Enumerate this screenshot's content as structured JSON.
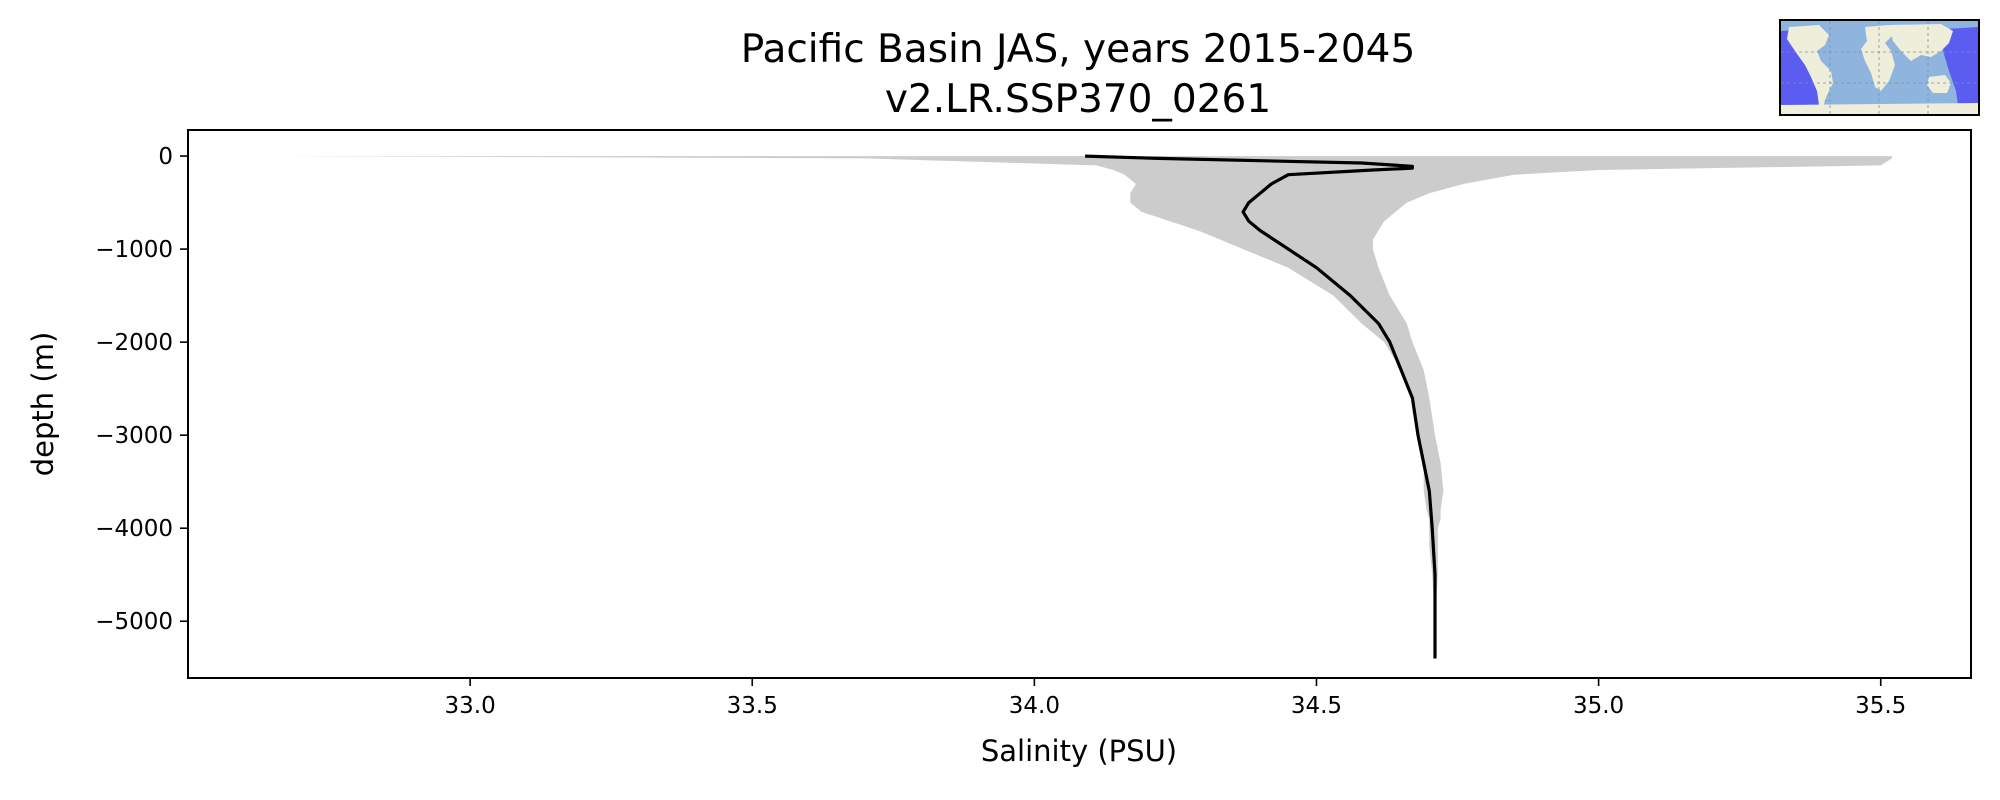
{
  "title": {
    "line1": "Pacific Basin JAS, years 2015-2045",
    "line2": "v2.LR.SSP370_0261"
  },
  "colors": {
    "profile_line": "#000000",
    "envelope_fill": "#cccccc",
    "ocean": "#8fb5de",
    "land": "#efeedb",
    "basin_highlight": "#5a5df0"
  },
  "inset_map": {
    "icon": "world-map-icon",
    "highlighted_region": "Pacific Basin"
  },
  "chart_data": {
    "type": "line",
    "title": "Pacific Basin JAS, years 2015-2045\nv2.LR.SSP370_0261",
    "xlabel": "Salinity (PSU)",
    "ylabel": "depth (m)",
    "xlim": [
      32.5,
      35.66
    ],
    "ylim": [
      -5610,
      280
    ],
    "xticks": [
      33.0,
      33.5,
      34.0,
      34.5,
      35.0,
      35.5
    ],
    "xtick_labels": [
      "33.0",
      "33.5",
      "34.0",
      "34.5",
      "35.0",
      "35.5"
    ],
    "yticks": [
      0,
      -1000,
      -2000,
      -3000,
      -4000,
      -5000
    ],
    "ytick_labels": [
      "0",
      "−1000",
      "−2000",
      "−3000",
      "−4000",
      "−5000"
    ],
    "grid": false,
    "series": [
      {
        "kind": "line",
        "depth": [
          0,
          -25,
          -75,
          -110,
          -130,
          -150,
          -200,
          -300,
          -400,
          -500,
          -600,
          -700,
          -800,
          -1000,
          -1200,
          -1500,
          -1800,
          -2000,
          -2300,
          -2600,
          -3000,
          -3300,
          -3600,
          -4000,
          -4500,
          -5000,
          -5400
        ],
        "salinity": [
          34.09,
          34.22,
          34.58,
          34.67,
          34.67,
          34.6,
          34.45,
          34.42,
          34.4,
          34.38,
          34.37,
          34.38,
          34.4,
          34.45,
          34.5,
          34.56,
          34.61,
          34.63,
          34.65,
          34.67,
          34.68,
          34.69,
          34.7,
          34.705,
          34.71,
          34.71,
          34.71
        ]
      },
      {
        "kind": "envelope",
        "depth": [
          0,
          -25,
          -100,
          -150,
          -200,
          -300,
          -400,
          -500,
          -600,
          -700,
          -800,
          -900,
          -1000,
          -1200,
          -1500,
          -1800,
          -2000,
          -2300,
          -2600,
          -3000,
          -3300,
          -3600,
          -3800,
          -3900,
          -4000,
          -4200,
          -4500,
          -5000,
          -5400
        ],
        "lower": [
          32.65,
          33.7,
          34.11,
          34.14,
          34.16,
          34.18,
          34.17,
          34.17,
          34.19,
          34.24,
          34.29,
          34.33,
          34.37,
          34.45,
          34.53,
          34.58,
          34.62,
          34.65,
          34.67,
          34.68,
          34.69,
          34.69,
          34.695,
          34.7,
          34.7,
          34.7,
          34.705,
          34.71,
          34.71
        ],
        "upper": [
          35.52,
          35.52,
          35.5,
          35.0,
          34.85,
          34.76,
          34.7,
          34.66,
          34.64,
          34.62,
          34.61,
          34.6,
          34.6,
          34.61,
          34.63,
          34.66,
          34.67,
          34.69,
          34.7,
          34.71,
          34.72,
          34.725,
          34.72,
          34.72,
          34.715,
          34.715,
          34.715,
          34.71,
          34.71
        ]
      }
    ]
  }
}
